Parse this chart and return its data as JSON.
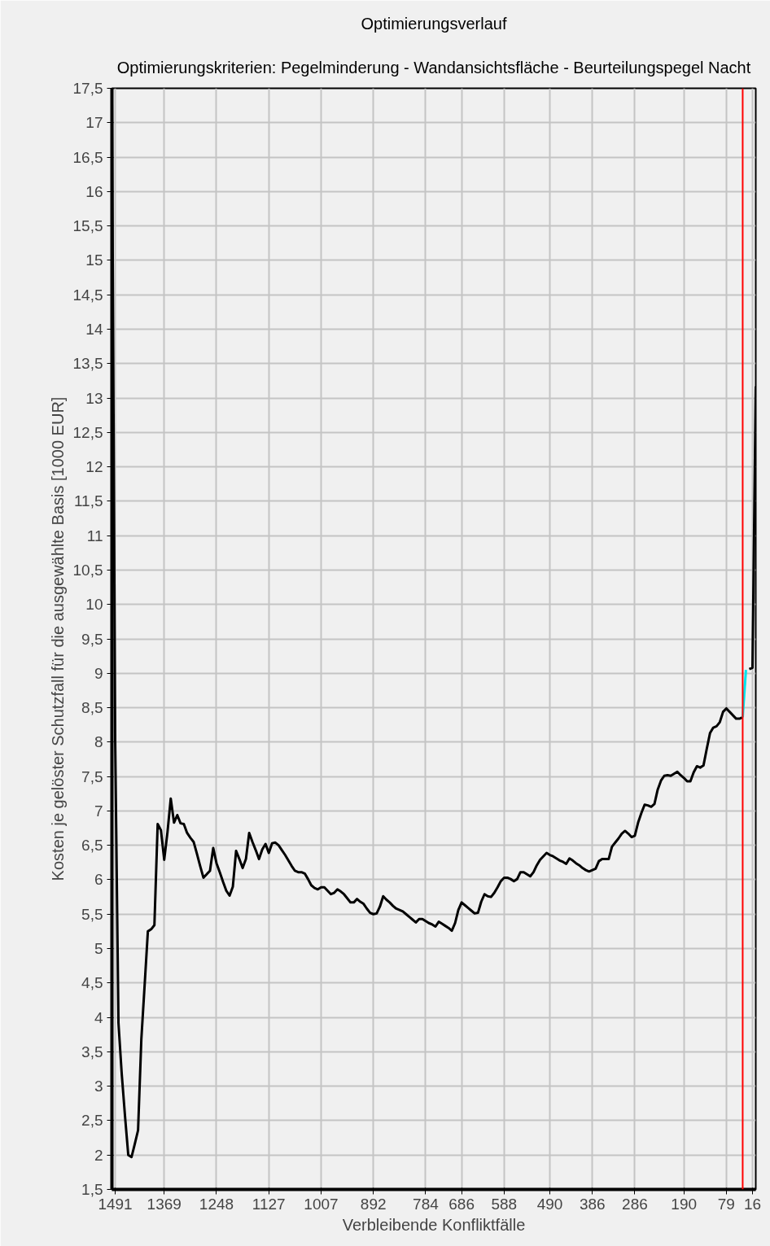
{
  "chart_data": {
    "type": "line",
    "title": "Optimierungsverlauf",
    "subtitle": "Optimierungskriterien: Pegelminderung - Wandansichtsfläche - Beurteilungspegel Nacht",
    "xlabel": "Verbleibende Konfliktfälle",
    "ylabel": "Kosten je gelöster Schutzfall für die ausgewählte Basis [1000 EUR]",
    "categories": [
      null,
      "1491",
      null,
      null,
      null,
      null,
      null,
      null,
      null,
      null,
      null,
      null,
      null,
      null,
      null,
      null,
      "1369",
      null,
      null,
      null,
      null,
      null,
      null,
      null,
      null,
      null,
      null,
      null,
      null,
      null,
      null,
      null,
      "1248",
      null,
      null,
      null,
      null,
      null,
      null,
      null,
      null,
      null,
      null,
      null,
      null,
      null,
      null,
      null,
      "1127",
      null,
      null,
      null,
      null,
      null,
      null,
      null,
      null,
      null,
      null,
      null,
      null,
      null,
      null,
      null,
      "1007",
      null,
      null,
      null,
      null,
      null,
      null,
      null,
      null,
      null,
      null,
      null,
      null,
      null,
      null,
      null,
      "892",
      null,
      null,
      null,
      null,
      null,
      null,
      null,
      null,
      null,
      null,
      null,
      null,
      null,
      null,
      null,
      "784",
      null,
      null,
      null,
      null,
      null,
      null,
      null,
      null,
      null,
      null,
      "686",
      null,
      null,
      null,
      null,
      null,
      null,
      null,
      null,
      null,
      null,
      null,
      null,
      "588",
      null,
      null,
      null,
      null,
      null,
      null,
      null,
      null,
      null,
      null,
      null,
      null,
      null,
      "490",
      null,
      null,
      null,
      null,
      null,
      null,
      null,
      null,
      null,
      null,
      null,
      null,
      "386",
      null,
      null,
      null,
      null,
      null,
      null,
      null,
      null,
      null,
      null,
      null,
      null,
      "286",
      null,
      null,
      null,
      null,
      null,
      null,
      null,
      null,
      null,
      null,
      null,
      null,
      null,
      null,
      "190",
      null,
      null,
      null,
      null,
      null,
      null,
      null,
      null,
      null,
      null,
      null,
      null,
      "79",
      null,
      null,
      null,
      null,
      null,
      null,
      null,
      "16",
      null
    ],
    "ylim": [
      1.5,
      17.5
    ],
    "yticks": [
      {
        "value": 1.5,
        "label": "1,5"
      },
      2,
      {
        "value": 2.5,
        "label": "2,5"
      },
      3,
      {
        "value": 3.5,
        "label": "3,5"
      },
      4,
      {
        "value": 4.5,
        "label": "4,5"
      },
      5,
      {
        "value": 5.5,
        "label": "5,5"
      },
      6,
      {
        "value": 6.5,
        "label": "6,5"
      },
      7,
      {
        "value": 7.5,
        "label": "7,5"
      },
      8,
      {
        "value": 8.5,
        "label": "8,5"
      },
      9,
      {
        "value": 9.5,
        "label": "9,5"
      },
      10,
      {
        "value": 10.5,
        "label": "10,5"
      },
      11,
      {
        "value": 11.5,
        "label": "11,5"
      },
      12,
      {
        "value": 12.5,
        "label": "12,5"
      },
      13,
      {
        "value": 13.5,
        "label": "13,5"
      },
      14,
      {
        "value": 14.5,
        "label": "14,5"
      },
      15,
      {
        "value": 15.5,
        "label": "15,5"
      },
      16,
      {
        "value": 16.5,
        "label": "16,5"
      },
      17,
      {
        "value": 17.5,
        "label": "17,5"
      }
    ],
    "grid": true,
    "line_style": "solid",
    "series": [
      {
        "color": "#000000",
        "values": [
          17.36,
          8.03,
          3.92,
          3.18,
          2.57,
          2.0,
          1.97,
          2.16,
          2.36,
          3.68,
          4.46,
          5.25,
          5.28,
          5.34,
          6.81,
          6.72,
          6.29,
          6.69,
          7.18,
          6.83,
          6.94,
          6.82,
          6.81,
          6.68,
          6.61,
          6.55,
          6.38,
          6.2,
          6.03,
          6.08,
          6.13,
          6.46,
          6.24,
          6.11,
          5.97,
          5.84,
          5.77,
          5.9,
          6.42,
          6.3,
          6.17,
          6.3,
          6.68,
          6.55,
          6.43,
          6.3,
          6.44,
          6.52,
          6.39,
          6.53,
          6.54,
          6.5,
          6.43,
          6.36,
          6.28,
          6.2,
          6.13,
          6.11,
          6.11,
          6.09,
          6.01,
          5.92,
          5.88,
          5.86,
          5.89,
          5.89,
          5.84,
          5.79,
          5.81,
          5.86,
          5.83,
          5.79,
          5.73,
          5.67,
          5.67,
          5.72,
          5.68,
          5.65,
          5.58,
          5.52,
          5.5,
          5.51,
          5.61,
          5.76,
          5.71,
          5.67,
          5.62,
          5.58,
          5.56,
          5.54,
          5.5,
          5.46,
          5.42,
          5.38,
          5.43,
          5.43,
          5.4,
          5.37,
          5.35,
          5.32,
          5.39,
          5.36,
          5.33,
          5.3,
          5.26,
          5.37,
          5.56,
          5.67,
          5.63,
          5.59,
          5.55,
          5.51,
          5.52,
          5.68,
          5.79,
          5.76,
          5.75,
          5.81,
          5.89,
          5.98,
          6.03,
          6.03,
          6.01,
          5.98,
          6.01,
          6.11,
          6.11,
          6.08,
          6.05,
          6.11,
          6.21,
          6.29,
          6.34,
          6.39,
          6.36,
          6.34,
          6.31,
          6.28,
          6.26,
          6.23,
          6.31,
          6.28,
          6.24,
          6.21,
          6.17,
          6.14,
          6.12,
          6.14,
          6.16,
          6.27,
          6.3,
          6.3,
          6.3,
          6.48,
          6.54,
          6.6,
          6.67,
          6.71,
          6.67,
          6.62,
          6.64,
          6.83,
          6.97,
          7.09,
          7.08,
          7.06,
          7.1,
          7.31,
          7.44,
          7.51,
          7.52,
          7.51,
          7.54,
          7.57,
          7.52,
          7.48,
          7.43,
          7.43,
          7.56,
          7.65,
          7.63,
          7.66,
          7.9,
          8.13,
          8.21,
          8.23,
          8.29,
          8.44,
          8.49,
          8.44,
          8.39,
          8.34,
          8.34,
          8.36,
          null,
          9.06,
          9.08,
          13.17
        ]
      },
      {
        "color": "#00e5ee",
        "values": [
          null,
          null,
          null,
          null,
          null,
          null,
          null,
          null,
          null,
          null,
          null,
          null,
          null,
          null,
          null,
          null,
          null,
          null,
          null,
          null,
          null,
          null,
          null,
          null,
          null,
          null,
          null,
          null,
          null,
          null,
          null,
          null,
          null,
          null,
          null,
          null,
          null,
          null,
          null,
          null,
          null,
          null,
          null,
          null,
          null,
          null,
          null,
          null,
          null,
          null,
          null,
          null,
          null,
          null,
          null,
          null,
          null,
          null,
          null,
          null,
          null,
          null,
          null,
          null,
          null,
          null,
          null,
          null,
          null,
          null,
          null,
          null,
          null,
          null,
          null,
          null,
          null,
          null,
          null,
          null,
          null,
          null,
          null,
          null,
          null,
          null,
          null,
          null,
          null,
          null,
          null,
          null,
          null,
          null,
          null,
          null,
          null,
          null,
          null,
          null,
          null,
          null,
          null,
          null,
          null,
          null,
          null,
          null,
          null,
          null,
          null,
          null,
          null,
          null,
          null,
          null,
          null,
          null,
          null,
          null,
          null,
          null,
          null,
          null,
          null,
          null,
          null,
          null,
          null,
          null,
          null,
          null,
          null,
          null,
          null,
          null,
          null,
          null,
          null,
          null,
          null,
          null,
          null,
          null,
          null,
          null,
          null,
          null,
          null,
          null,
          null,
          null,
          null,
          null,
          null,
          null,
          null,
          null,
          null,
          null,
          null,
          null,
          null,
          null,
          null,
          null,
          null,
          null,
          null,
          null,
          null,
          null,
          null,
          null,
          null,
          null,
          null,
          null,
          null,
          null,
          null,
          null,
          null,
          null,
          null,
          null,
          null,
          null,
          null,
          null,
          null,
          null,
          null,
          8.36,
          9.05,
          null,
          null,
          null
        ]
      }
    ]
  }
}
